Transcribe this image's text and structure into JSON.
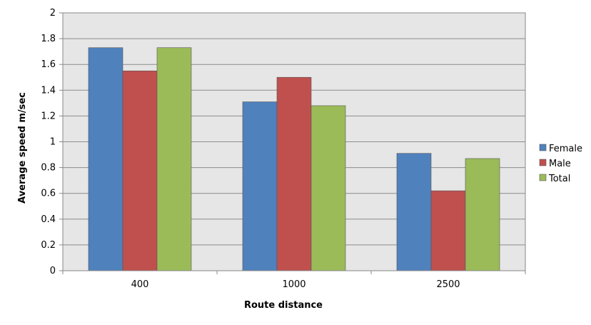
{
  "chart_data": {
    "type": "bar",
    "title": "",
    "xlabel": "Route distance",
    "ylabel": "Average speed m/sec",
    "categories": [
      "400",
      "1000",
      "2500"
    ],
    "series": [
      {
        "name": "Female",
        "color": "#4f81bd",
        "values": [
          1.73,
          1.31,
          0.91
        ]
      },
      {
        "name": "Male",
        "color": "#c0504d",
        "values": [
          1.55,
          1.5,
          0.62
        ]
      },
      {
        "name": "Total",
        "color": "#9bbb59",
        "values": [
          1.73,
          1.28,
          0.87
        ]
      }
    ],
    "ylim": [
      0,
      2
    ],
    "yticks": [
      "0",
      "0.2",
      "0.4",
      "0.6",
      "0.8",
      "1",
      "1.2",
      "1.4",
      "1.6",
      "1.8",
      "2"
    ],
    "grid": true,
    "legend": "right",
    "plot_background": "#e6e6e6"
  }
}
